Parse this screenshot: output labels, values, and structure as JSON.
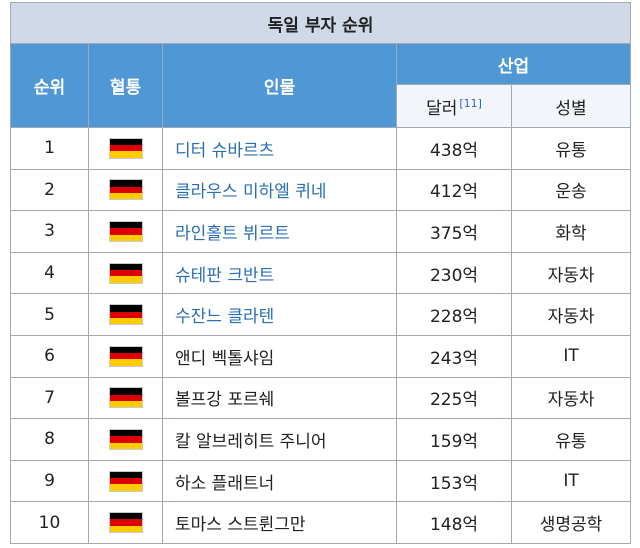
{
  "table": {
    "title": "독일 부자 순위",
    "headers": {
      "rank": "순위",
      "nationality": "혈통",
      "person": "인물",
      "industry_group": "산업",
      "dollar": "달러",
      "dollar_ref": "[11]",
      "sector": "성별"
    },
    "flag_colors": [
      "#000000",
      "#dd0000",
      "#ffcc00"
    ],
    "link_color": "#2a6fb3",
    "rows": [
      {
        "rank": "1",
        "name": "디터 슈바르츠",
        "linked": true,
        "value": "438억",
        "sector": "유통"
      },
      {
        "rank": "2",
        "name": "클라우스 미하엘 퀴네",
        "linked": true,
        "value": "412억",
        "sector": "운송"
      },
      {
        "rank": "3",
        "name": "라인홀트 뷔르트",
        "linked": true,
        "value": "375억",
        "sector": "화학"
      },
      {
        "rank": "4",
        "name": "슈테판 크반트",
        "linked": true,
        "value": "230억",
        "sector": "자동차"
      },
      {
        "rank": "5",
        "name": "수잔느 클라텐",
        "linked": true,
        "value": "228억",
        "sector": "자동차"
      },
      {
        "rank": "6",
        "name": "앤디 벡톨샤임",
        "linked": false,
        "value": "243억",
        "sector": "IT"
      },
      {
        "rank": "7",
        "name": "볼프강 포르쉐",
        "linked": false,
        "value": "225억",
        "sector": "자동차"
      },
      {
        "rank": "8",
        "name": "칼 알브레히트 주니어",
        "linked": false,
        "value": "159억",
        "sector": "유통"
      },
      {
        "rank": "9",
        "name": "하소 플래트너",
        "linked": false,
        "value": "153억",
        "sector": "IT"
      },
      {
        "rank": "10",
        "name": "토마스 스트륀그만",
        "linked": false,
        "value": "148억",
        "sector": "생명공학"
      }
    ]
  }
}
